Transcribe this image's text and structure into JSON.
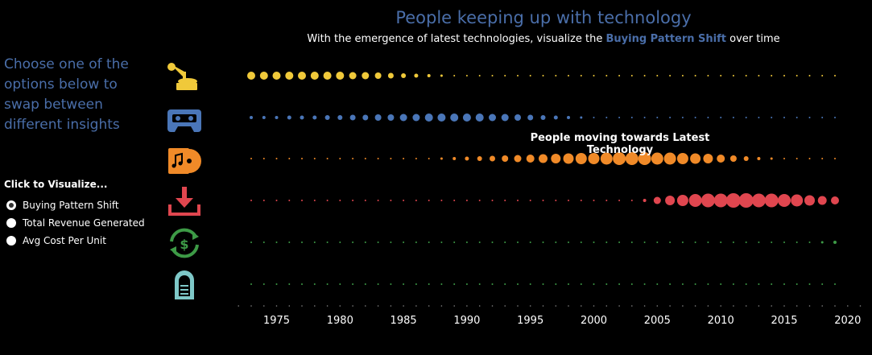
{
  "header": {
    "title": "People keeping up with technology",
    "subtitle_prefix": "With the emergence of latest technologies, visualize the ",
    "subtitle_highlight": "Buying Pattern Shift",
    "subtitle_suffix": " over time"
  },
  "sidebar": {
    "prompt": "Choose one of the options below to swap between different insights",
    "click_label": "Click to Visualize...",
    "options": [
      {
        "label": "Buying Pattern Shift",
        "selected": true
      },
      {
        "label": "Total Revenue Generated",
        "selected": false
      },
      {
        "label": "Avg Cost Per Unit",
        "selected": false
      }
    ]
  },
  "annotation": "People moving towards Latest Technology",
  "icons": [
    "gramophone-icon",
    "cassette-icon",
    "cd-music-icon",
    "download-icon",
    "dollar-cycle-icon",
    "jukebox-icon"
  ],
  "chart_data": {
    "type": "scatter",
    "title": "People keeping up with technology",
    "x": {
      "min": 1973,
      "max": 2019,
      "ticks": [
        1975,
        1980,
        1985,
        1990,
        1995,
        2000,
        2005,
        2010,
        2015,
        2020
      ]
    },
    "series": [
      {
        "color": "#f0c93a",
        "start": 1973,
        "values": [
          10,
          10,
          10,
          10,
          10,
          10,
          10,
          10,
          9,
          9,
          8,
          7,
          6,
          5,
          4,
          3,
          2,
          2,
          2,
          2,
          2,
          2,
          2,
          2,
          2,
          2,
          2,
          2,
          2,
          2,
          2,
          2,
          2,
          2,
          2,
          2,
          2,
          2,
          2,
          2,
          2,
          2,
          2,
          2,
          2,
          2,
          2
        ]
      },
      {
        "color": "#4a76b8",
        "start": 1973,
        "values": [
          4,
          4,
          4,
          5,
          5,
          5,
          6,
          6,
          7,
          7,
          8,
          8,
          9,
          9,
          10,
          10,
          10,
          10,
          10,
          9,
          9,
          8,
          7,
          6,
          5,
          4,
          3,
          2,
          2,
          2,
          2,
          2,
          2,
          2,
          2,
          2,
          2,
          2,
          2,
          2,
          2,
          2,
          2,
          2,
          2,
          2,
          2
        ]
      },
      {
        "color": "#f08a28",
        "start": 1973,
        "values": [
          2,
          2,
          2,
          2,
          2,
          2,
          2,
          2,
          2,
          2,
          2,
          2,
          2,
          2,
          2,
          3,
          4,
          5,
          6,
          7,
          8,
          9,
          10,
          11,
          12,
          13,
          14,
          14,
          15,
          16,
          16,
          16,
          15,
          15,
          14,
          13,
          12,
          10,
          8,
          6,
          4,
          3,
          2,
          2,
          2,
          2,
          2
        ]
      },
      {
        "color": "#e0464f",
        "start": 1973,
        "values": [
          2,
          2,
          2,
          2,
          2,
          2,
          2,
          2,
          2,
          2,
          2,
          2,
          2,
          2,
          2,
          2,
          2,
          2,
          2,
          2,
          2,
          2,
          2,
          2,
          2,
          2,
          2,
          2,
          2,
          2,
          2,
          4,
          9,
          12,
          14,
          16,
          17,
          17,
          18,
          18,
          17,
          17,
          16,
          15,
          13,
          11,
          10
        ]
      },
      {
        "color": "#3d9a46",
        "start": 1973,
        "values": [
          2,
          2,
          2,
          2,
          2,
          2,
          2,
          2,
          2,
          2,
          2,
          2,
          2,
          2,
          2,
          2,
          2,
          2,
          2,
          2,
          2,
          2,
          2,
          2,
          2,
          2,
          2,
          2,
          2,
          2,
          2,
          2,
          2,
          2,
          2,
          2,
          2,
          2,
          2,
          2,
          2,
          2,
          2,
          2,
          2,
          3,
          4
        ]
      },
      {
        "color": "#3d9a46",
        "start": 1973,
        "values": [
          2,
          2,
          2,
          2,
          2,
          2,
          2,
          2,
          2,
          2,
          2,
          2,
          2,
          2,
          2,
          2,
          2,
          2,
          2,
          2,
          2,
          2,
          2,
          2,
          2,
          2,
          2,
          2,
          2,
          2,
          2,
          2,
          2,
          2,
          2,
          2,
          2,
          2,
          2,
          2,
          2,
          2,
          2,
          2,
          2,
          2,
          2
        ]
      }
    ]
  }
}
